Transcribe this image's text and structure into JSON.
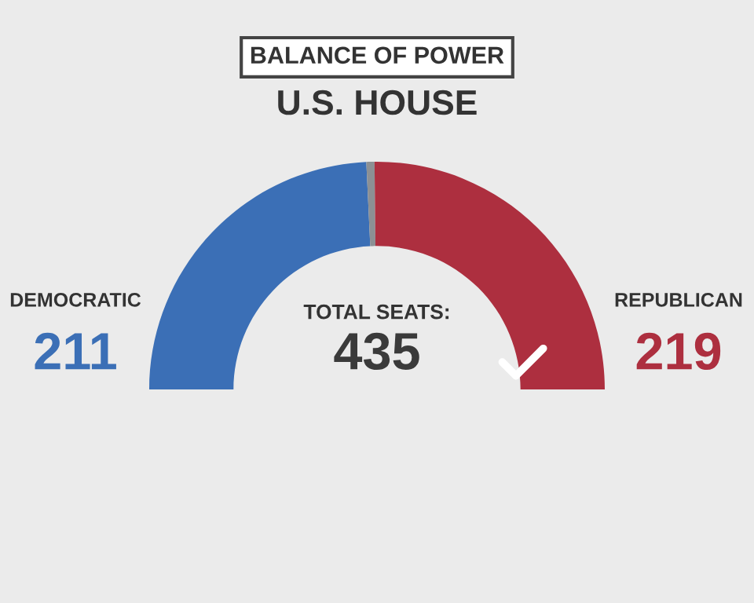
{
  "chart_data": {
    "type": "donut",
    "title": "BALANCE OF POWER",
    "subtitle": "U.S. HOUSE",
    "categories": [
      "DEMOCRATIC",
      null,
      "REPUBLICAN"
    ],
    "values": [
      211,
      5,
      219
    ],
    "colors": [
      "#3b6fb6",
      "#8c9094",
      "#ad2f3f"
    ],
    "value_labels": [
      "211",
      null,
      "219"
    ],
    "annotations": [
      "TOTAL SEATS:",
      "435"
    ]
  }
}
